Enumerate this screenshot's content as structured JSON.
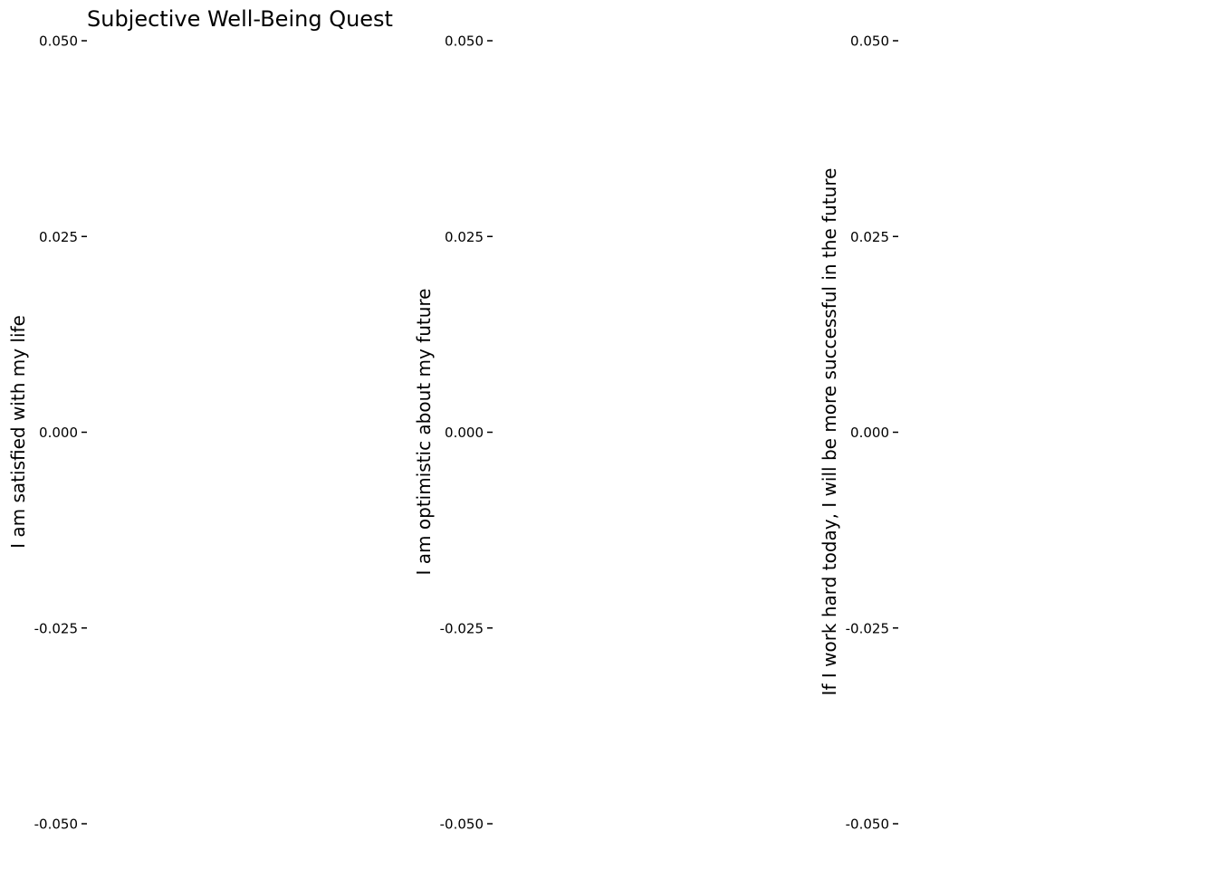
{
  "figure": {
    "title": "Subjective Well-Being Quest"
  },
  "chart_data": [
    {
      "type": "scatter",
      "title": "",
      "xlabel": "",
      "ylabel": "I am satisfied with my life",
      "ylim": [
        -0.05,
        0.05
      ],
      "yticks": [
        0.05,
        0.025,
        0.0,
        -0.025,
        -0.05
      ],
      "ytick_labels": [
        "0.050",
        "0.025",
        "0.000",
        "-0.025",
        "-0.050"
      ],
      "series": [],
      "grid": false,
      "axis_lines": false
    },
    {
      "type": "scatter",
      "title": "",
      "xlabel": "",
      "ylabel": "I am optimistic about my future",
      "ylim": [
        -0.05,
        0.05
      ],
      "yticks": [
        0.05,
        0.025,
        0.0,
        -0.025,
        -0.05
      ],
      "ytick_labels": [
        "0.050",
        "0.025",
        "0.000",
        "-0.025",
        "-0.050"
      ],
      "series": [],
      "grid": false,
      "axis_lines": false
    },
    {
      "type": "scatter",
      "title": "",
      "xlabel": "",
      "ylabel": "If I work hard today, I will be more successful in the future",
      "ylim": [
        -0.05,
        0.05
      ],
      "yticks": [
        0.05,
        0.025,
        0.0,
        -0.025,
        -0.05
      ],
      "ytick_labels": [
        "0.050",
        "0.025",
        "0.000",
        "-0.025",
        "-0.050"
      ],
      "series": [],
      "grid": false,
      "axis_lines": false
    }
  ]
}
